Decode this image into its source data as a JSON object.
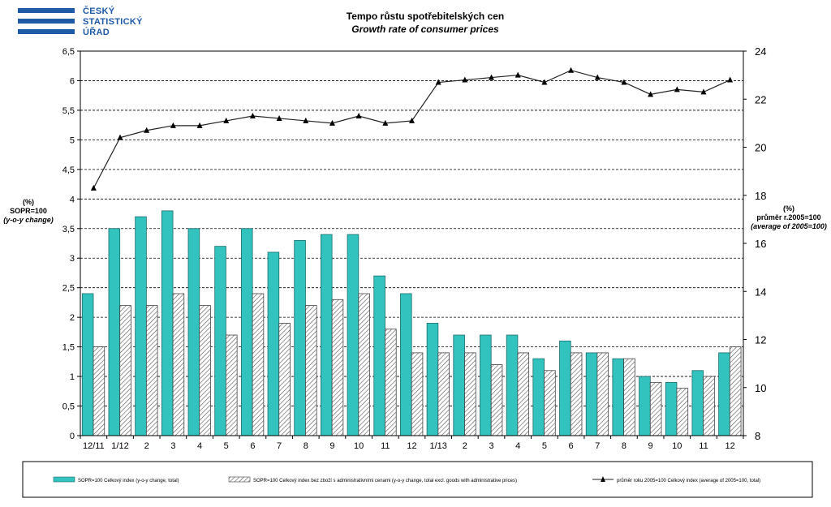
{
  "logo": {
    "lines": [
      "ČESKÝ",
      "STATISTICKÝ",
      "ÚŘAD"
    ]
  },
  "colors": {
    "bar_total": "#33c3bf",
    "bar_excl_hatch": "#555555",
    "line": "#222222",
    "logo": "#1f5aa6"
  },
  "chart_data": {
    "type": "bar",
    "title": "Tempo růstu spotřebitelských  cen",
    "subtitle": "Growth rate  of consumer prices",
    "categories": [
      "12/11",
      "1/12",
      "2",
      "3",
      "4",
      "5",
      "6",
      "7",
      "8",
      "9",
      "10",
      "11",
      "12",
      "1/13",
      "2",
      "3",
      "4",
      "5",
      "6",
      "7",
      "8",
      "9",
      "10",
      "11",
      "12"
    ],
    "left_axis": {
      "label": [
        "(%)",
        "SOPR=100",
        "(y-o-y change)"
      ],
      "ylim": [
        0,
        6.5
      ],
      "ticks": [
        "0",
        "0,5",
        "1",
        "1,5",
        "2",
        "2,5",
        "3",
        "3,5",
        "4",
        "4,5",
        "5",
        "5,5",
        "6",
        "6,5"
      ]
    },
    "right_axis": {
      "label": [
        "(%)",
        "průměr r.2005=100",
        "(average of 2005=100)"
      ],
      "ylim": [
        8,
        24
      ],
      "ticks": [
        "8",
        "10",
        "12",
        "14",
        "16",
        "18",
        "20",
        "22",
        "24"
      ]
    },
    "series": [
      {
        "name": "SOPR=100 Celkový index (y-o-y change, total)",
        "type": "bar",
        "axis": "left",
        "values": [
          2.4,
          3.5,
          3.7,
          3.8,
          3.5,
          3.2,
          3.5,
          3.1,
          3.3,
          3.4,
          3.4,
          2.7,
          2.4,
          1.9,
          1.7,
          1.7,
          1.7,
          1.3,
          1.6,
          1.4,
          1.3,
          1.0,
          0.9,
          1.1,
          1.4
        ]
      },
      {
        "name": "SOPR=100 Celkový index bez zboží s administrativními cenami (y-o-y change, total excl. goods with administrative prices)",
        "type": "bar",
        "axis": "left",
        "values": [
          1.5,
          2.2,
          2.2,
          2.4,
          2.2,
          1.7,
          2.4,
          1.9,
          2.2,
          2.3,
          2.4,
          1.8,
          1.4,
          1.4,
          1.4,
          1.2,
          1.4,
          1.1,
          1.4,
          1.4,
          1.3,
          0.9,
          0.8,
          1.0,
          1.5
        ]
      },
      {
        "name": "průměr roku 2005=100 Celkový index (average of 2005=100, total)",
        "type": "line",
        "axis": "right",
        "values": [
          18.3,
          20.4,
          20.7,
          20.9,
          20.9,
          21.1,
          21.3,
          21.2,
          21.1,
          21.0,
          21.3,
          21.0,
          21.1,
          22.7,
          22.8,
          22.9,
          23.0,
          22.7,
          23.2,
          22.9,
          22.7,
          22.2,
          22.4,
          22.3,
          22.8
        ]
      }
    ],
    "grid": true,
    "legend": "bottom"
  }
}
